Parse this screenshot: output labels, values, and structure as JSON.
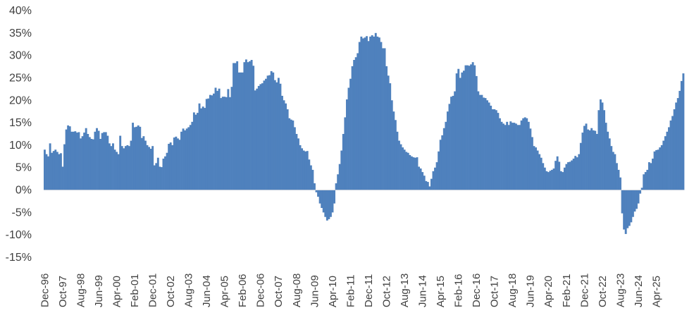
{
  "chart_data": {
    "type": "bar",
    "title": "",
    "xlabel": "",
    "ylabel": "",
    "ylim": [
      -0.15,
      0.4
    ],
    "y_ticks": [
      -0.15,
      -0.1,
      -0.05,
      0,
      0.05,
      0.1,
      0.15,
      0.2,
      0.25,
      0.3,
      0.35,
      0.4
    ],
    "y_tick_labels": [
      "-15%",
      "-10%",
      "-5%",
      "0%",
      "5%",
      "10%",
      "15%",
      "20%",
      "25%",
      "30%",
      "35%",
      "40%"
    ],
    "x_tick_labels": [
      "Dec-96",
      "Oct-97",
      "Aug-98",
      "Jun-99",
      "Apr-00",
      "Feb-01",
      "Dec-01",
      "Oct-02",
      "Aug-03",
      "Jun-04",
      "Apr-05",
      "Feb-06",
      "Dec-06",
      "Oct-07",
      "Aug-08",
      "Jun-09",
      "Apr-10",
      "Feb-11",
      "Dec-11",
      "Oct-12",
      "Aug-13",
      "Jun-14",
      "Apr-15",
      "Feb-16",
      "Dec-16",
      "Oct-17",
      "Aug-18",
      "Jun-19",
      "Apr-20",
      "Feb-21",
      "Dec-21",
      "Oct-22",
      "Aug-23",
      "Jun-24",
      "Apr-25"
    ],
    "start_period": "Dec-96",
    "frequency": "monthly",
    "grid": false,
    "legend": "none",
    "bar_color": "#4F81BD",
    "values": [
      0.09,
      0.08,
      0.075,
      0.104,
      0.083,
      0.087,
      0.09,
      0.085,
      0.08,
      0.082,
      0.052,
      0.102,
      0.135,
      0.144,
      0.142,
      0.13,
      0.13,
      0.131,
      0.128,
      0.129,
      0.115,
      0.12,
      0.128,
      0.138,
      0.125,
      0.118,
      0.114,
      0.113,
      0.13,
      0.138,
      0.132,
      0.114,
      0.127,
      0.129,
      0.129,
      0.121,
      0.104,
      0.098,
      0.104,
      0.09,
      0.085,
      0.08,
      0.121,
      0.098,
      0.093,
      0.098,
      0.1,
      0.098,
      0.11,
      0.15,
      0.14,
      0.141,
      0.144,
      0.141,
      0.116,
      0.12,
      0.11,
      0.1,
      0.096,
      0.092,
      0.098,
      0.055,
      0.06,
      0.072,
      0.052,
      0.051,
      0.07,
      0.075,
      0.083,
      0.103,
      0.106,
      0.1,
      0.117,
      0.119,
      0.115,
      0.112,
      0.13,
      0.137,
      0.133,
      0.137,
      0.14,
      0.145,
      0.152,
      0.173,
      0.168,
      0.172,
      0.193,
      0.182,
      0.186,
      0.183,
      0.203,
      0.204,
      0.212,
      0.211,
      0.215,
      0.228,
      0.221,
      0.226,
      0.205,
      0.208,
      0.208,
      0.207,
      0.225,
      0.207,
      0.23,
      0.283,
      0.283,
      0.287,
      0.262,
      0.262,
      0.262,
      0.285,
      0.291,
      0.285,
      0.287,
      0.29,
      0.277,
      0.222,
      0.226,
      0.232,
      0.236,
      0.238,
      0.244,
      0.248,
      0.255,
      0.256,
      0.265,
      0.262,
      0.245,
      0.24,
      0.25,
      0.237,
      0.21,
      0.2,
      0.193,
      0.18,
      0.16,
      0.157,
      0.155,
      0.14,
      0.125,
      0.115,
      0.1,
      0.093,
      0.088,
      0.086,
      0.087,
      0.068,
      0.055,
      0.045,
      0.015,
      -0.005,
      -0.015,
      -0.03,
      -0.04,
      -0.05,
      -0.06,
      -0.068,
      -0.065,
      -0.06,
      -0.05,
      -0.03,
      0.015,
      0.035,
      0.058,
      0.088,
      0.125,
      0.162,
      0.202,
      0.228,
      0.248,
      0.276,
      0.29,
      0.296,
      0.305,
      0.33,
      0.342,
      0.338,
      0.34,
      0.343,
      0.332,
      0.342,
      0.345,
      0.342,
      0.35,
      0.342,
      0.34,
      0.33,
      0.316,
      0.316,
      0.276,
      0.255,
      0.238,
      0.2,
      0.175,
      0.156,
      0.13,
      0.11,
      0.102,
      0.095,
      0.09,
      0.085,
      0.083,
      0.078,
      0.075,
      0.073,
      0.072,
      0.073,
      0.052,
      0.048,
      0.04,
      0.032,
      0.02,
      0.018,
      0.008,
      0.025,
      0.042,
      0.05,
      0.062,
      0.086,
      0.112,
      0.122,
      0.138,
      0.152,
      0.175,
      0.192,
      0.208,
      0.21,
      0.22,
      0.26,
      0.27,
      0.25,
      0.262,
      0.266,
      0.278,
      0.278,
      0.277,
      0.28,
      0.285,
      0.278,
      0.254,
      0.22,
      0.212,
      0.212,
      0.206,
      0.205,
      0.2,
      0.195,
      0.188,
      0.18,
      0.18,
      0.178,
      0.172,
      0.16,
      0.152,
      0.148,
      0.145,
      0.152,
      0.145,
      0.153,
      0.15,
      0.15,
      0.148,
      0.145,
      0.145,
      0.155,
      0.16,
      0.162,
      0.16,
      0.152,
      0.137,
      0.118,
      0.098,
      0.095,
      0.088,
      0.08,
      0.072,
      0.06,
      0.05,
      0.042,
      0.04,
      0.043,
      0.045,
      0.048,
      0.065,
      0.075,
      0.063,
      0.042,
      0.04,
      0.05,
      0.058,
      0.062,
      0.063,
      0.066,
      0.07,
      0.076,
      0.073,
      0.08,
      0.105,
      0.128,
      0.143,
      0.148,
      0.135,
      0.133,
      0.138,
      0.133,
      0.132,
      0.125,
      0.178,
      0.202,
      0.195,
      0.178,
      0.15,
      0.13,
      0.115,
      0.098,
      0.085,
      0.08,
      0.06,
      0.045,
      0.028,
      -0.052,
      -0.088,
      -0.098,
      -0.085,
      -0.08,
      -0.072,
      -0.06,
      -0.048,
      -0.042,
      -0.03,
      -0.008,
      0.005,
      0.035,
      0.04,
      0.045,
      0.062,
      0.06,
      0.07,
      0.086,
      0.089,
      0.09,
      0.095,
      0.1,
      0.11,
      0.12,
      0.13,
      0.14,
      0.155,
      0.165,
      0.18,
      0.195,
      0.205,
      0.221,
      0.243,
      0.26
    ]
  }
}
